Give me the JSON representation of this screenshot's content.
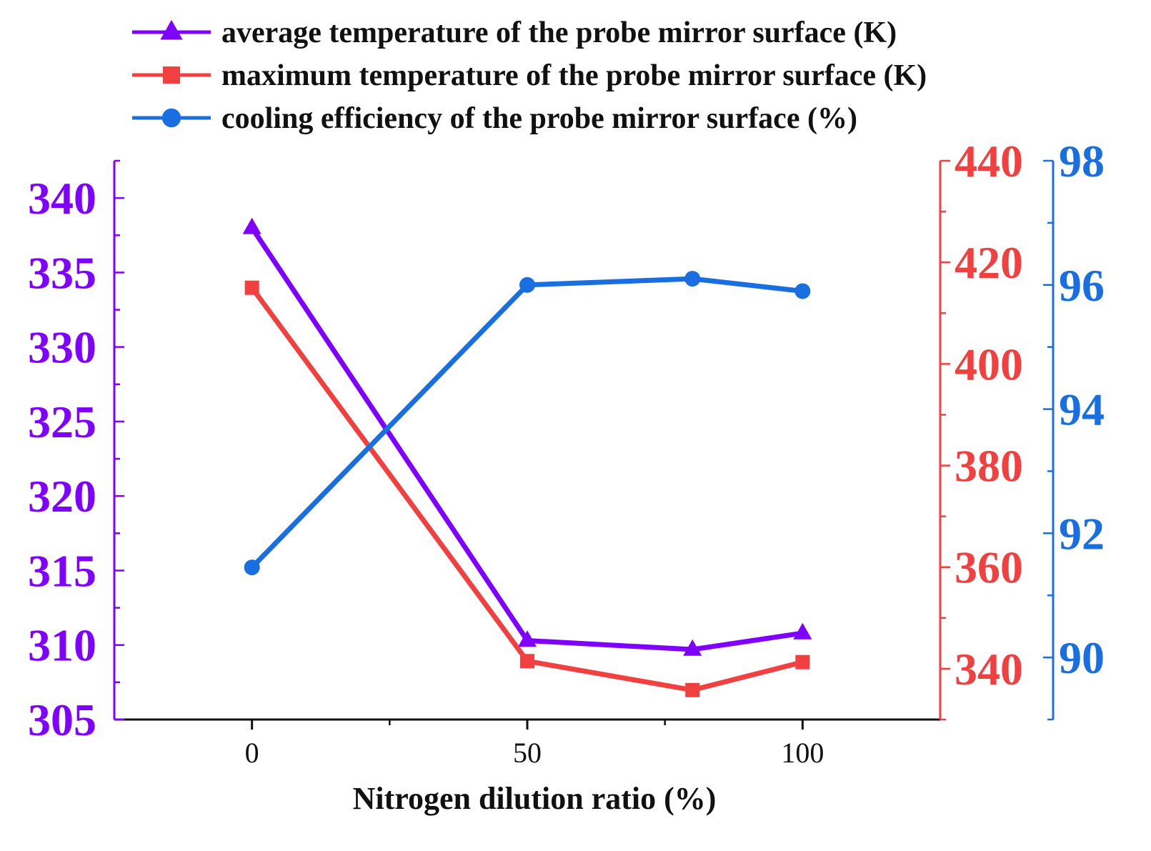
{
  "chart_data": {
    "type": "line",
    "title": "",
    "xlabel": "Nitrogen dilution ratio (%)",
    "xlim": [
      -25,
      125
    ],
    "x_ticks": [
      0,
      50,
      100
    ],
    "x_minor_ticks": [
      25,
      75
    ],
    "legend_position": "top",
    "series": [
      {
        "name": "average temperature of the probe mirror surface (K)",
        "axis": "left",
        "color": "#8000ff",
        "marker": "triangle",
        "x": [
          0,
          50,
          80,
          100
        ],
        "values": [
          338,
          310.3,
          309.7,
          310.8
        ]
      },
      {
        "name": "maximum temperature of the probe mirror surface (K)",
        "axis": "right1",
        "color": "#f04040",
        "marker": "square",
        "x": [
          0,
          50,
          80,
          100
        ],
        "values": [
          415,
          341.5,
          335.8,
          341.3
        ]
      },
      {
        "name": "cooling efficiency of the probe mirror surface (%)",
        "axis": "right2",
        "color": "#1a6fe0",
        "marker": "circle",
        "x": [
          0,
          50,
          80,
          100
        ],
        "values": [
          91.45,
          96,
          96.1,
          95.9
        ]
      }
    ],
    "axes": {
      "left": {
        "color": "#8000ff",
        "ylim": [
          305,
          342.5
        ],
        "ticks": [
          305,
          310,
          315,
          320,
          325,
          330,
          335,
          340
        ],
        "minor_step": 2.5
      },
      "right1": {
        "color": "#f04040",
        "ylim": [
          330,
          440
        ],
        "ticks": [
          340,
          360,
          380,
          400,
          420,
          440
        ],
        "minor_step": 10
      },
      "right2": {
        "color": "#1a6fe0",
        "ylim": [
          89,
          98
        ],
        "ticks": [
          90,
          92,
          94,
          96,
          98
        ],
        "minor_step": 1
      }
    }
  }
}
